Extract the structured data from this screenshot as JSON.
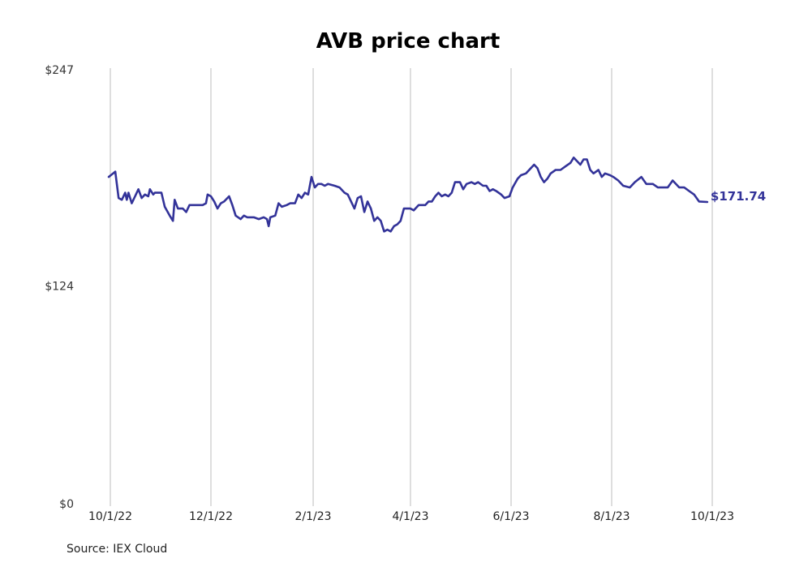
{
  "chart_data": {
    "type": "line",
    "title": "AVB price chart",
    "xlabel": "",
    "ylabel": "",
    "ylim": [
      0,
      247
    ],
    "y_ticks": [
      {
        "value": 0,
        "label": "$0"
      },
      {
        "value": 124,
        "label": "$124"
      },
      {
        "value": 247,
        "label": "$247"
      }
    ],
    "x_ticks": [
      "10/1/22",
      "12/1/22",
      "2/1/23",
      "4/1/23",
      "6/1/23",
      "8/1/23",
      "10/1/23"
    ],
    "xlim": [
      "2022-10-01",
      "2023-10-01"
    ],
    "grid": "vertical",
    "series_color": "#333399",
    "end_label": "$171.74",
    "series": [
      {
        "name": "",
        "points": [
          [
            "2022-09-30",
            186.0
          ],
          [
            "2022-10-04",
            189.0
          ],
          [
            "2022-10-06",
            174.0
          ],
          [
            "2022-10-08",
            173.0
          ],
          [
            "2022-10-10",
            177.0
          ],
          [
            "2022-10-11",
            173.0
          ],
          [
            "2022-10-12",
            177.0
          ],
          [
            "2022-10-14",
            171.0
          ],
          [
            "2022-10-16",
            175.0
          ],
          [
            "2022-10-18",
            179.0
          ],
          [
            "2022-10-20",
            174.0
          ],
          [
            "2022-10-22",
            176.0
          ],
          [
            "2022-10-24",
            175.0
          ],
          [
            "2022-10-25",
            179.0
          ],
          [
            "2022-10-27",
            176.0
          ],
          [
            "2022-10-28",
            177.0
          ],
          [
            "2022-11-01",
            177.0
          ],
          [
            "2022-11-03",
            169.0
          ],
          [
            "2022-11-06",
            164.0
          ],
          [
            "2022-11-08",
            161.0
          ],
          [
            "2022-11-09",
            173.0
          ],
          [
            "2022-11-11",
            168.0
          ],
          [
            "2022-11-14",
            168.0
          ],
          [
            "2022-11-16",
            166.0
          ],
          [
            "2022-11-18",
            170.0
          ],
          [
            "2022-11-22",
            170.0
          ],
          [
            "2022-11-26",
            170.0
          ],
          [
            "2022-11-28",
            171.0
          ],
          [
            "2022-11-29",
            176.0
          ],
          [
            "2022-12-01",
            175.0
          ],
          [
            "2022-12-03",
            172.0
          ],
          [
            "2022-12-05",
            168.0
          ],
          [
            "2022-12-07",
            171.0
          ],
          [
            "2022-12-09",
            172.0
          ],
          [
            "2022-12-12",
            175.0
          ],
          [
            "2022-12-14",
            170.0
          ],
          [
            "2022-12-16",
            164.0
          ],
          [
            "2022-12-19",
            162.0
          ],
          [
            "2022-12-21",
            164.0
          ],
          [
            "2022-12-23",
            163.0
          ],
          [
            "2022-12-27",
            163.0
          ],
          [
            "2022-12-30",
            162.0
          ],
          [
            "2023-01-02",
            163.0
          ],
          [
            "2023-01-04",
            162.0
          ],
          [
            "2023-01-05",
            158.0
          ],
          [
            "2023-01-06",
            163.0
          ],
          [
            "2023-01-09",
            164.0
          ],
          [
            "2023-01-11",
            171.0
          ],
          [
            "2023-01-13",
            169.0
          ],
          [
            "2023-01-16",
            170.0
          ],
          [
            "2023-01-18",
            171.0
          ],
          [
            "2023-01-21",
            171.0
          ],
          [
            "2023-01-23",
            176.0
          ],
          [
            "2023-01-25",
            174.0
          ],
          [
            "2023-01-27",
            177.0
          ],
          [
            "2023-01-29",
            176.0
          ],
          [
            "2023-01-31",
            186.0
          ],
          [
            "2023-02-02",
            180.0
          ],
          [
            "2023-02-04",
            182.0
          ],
          [
            "2023-02-06",
            182.0
          ],
          [
            "2023-02-08",
            181.0
          ],
          [
            "2023-02-10",
            182.0
          ],
          [
            "2023-02-14",
            181.0
          ],
          [
            "2023-02-17",
            180.0
          ],
          [
            "2023-02-20",
            177.0
          ],
          [
            "2023-02-22",
            176.0
          ],
          [
            "2023-02-24",
            172.0
          ],
          [
            "2023-02-26",
            168.0
          ],
          [
            "2023-02-28",
            174.0
          ],
          [
            "2023-03-02",
            175.0
          ],
          [
            "2023-03-04",
            166.0
          ],
          [
            "2023-03-06",
            172.0
          ],
          [
            "2023-03-08",
            168.0
          ],
          [
            "2023-03-10",
            161.0
          ],
          [
            "2023-03-12",
            163.0
          ],
          [
            "2023-03-14",
            161.0
          ],
          [
            "2023-03-16",
            155.0
          ],
          [
            "2023-03-18",
            156.0
          ],
          [
            "2023-03-20",
            155.0
          ],
          [
            "2023-03-22",
            158.0
          ],
          [
            "2023-03-24",
            159.0
          ],
          [
            "2023-03-26",
            161.0
          ],
          [
            "2023-03-28",
            168.0
          ],
          [
            "2023-04-01",
            168.0
          ],
          [
            "2023-04-03",
            167.0
          ],
          [
            "2023-04-06",
            170.0
          ],
          [
            "2023-04-10",
            170.0
          ],
          [
            "2023-04-12",
            172.0
          ],
          [
            "2023-04-14",
            172.0
          ],
          [
            "2023-04-16",
            175.0
          ],
          [
            "2023-04-18",
            177.0
          ],
          [
            "2023-04-20",
            175.0
          ],
          [
            "2023-04-22",
            176.0
          ],
          [
            "2023-04-24",
            175.0
          ],
          [
            "2023-04-26",
            177.0
          ],
          [
            "2023-04-28",
            183.0
          ],
          [
            "2023-05-01",
            183.0
          ],
          [
            "2023-05-03",
            179.0
          ],
          [
            "2023-05-05",
            182.0
          ],
          [
            "2023-05-08",
            183.0
          ],
          [
            "2023-05-10",
            182.0
          ],
          [
            "2023-05-12",
            183.0
          ],
          [
            "2023-05-15",
            181.0
          ],
          [
            "2023-05-17",
            181.0
          ],
          [
            "2023-05-19",
            178.0
          ],
          [
            "2023-05-21",
            179.0
          ],
          [
            "2023-05-23",
            178.0
          ],
          [
            "2023-05-26",
            176.0
          ],
          [
            "2023-05-28",
            174.0
          ],
          [
            "2023-05-31",
            175.0
          ],
          [
            "2023-06-02",
            180.0
          ],
          [
            "2023-06-05",
            185.0
          ],
          [
            "2023-06-07",
            187.0
          ],
          [
            "2023-06-10",
            188.0
          ],
          [
            "2023-06-13",
            191.0
          ],
          [
            "2023-06-15",
            193.0
          ],
          [
            "2023-06-17",
            191.0
          ],
          [
            "2023-06-19",
            186.0
          ],
          [
            "2023-06-21",
            183.0
          ],
          [
            "2023-06-23",
            185.0
          ],
          [
            "2023-06-25",
            188.0
          ],
          [
            "2023-06-28",
            190.0
          ],
          [
            "2023-07-01",
            190.0
          ],
          [
            "2023-07-04",
            192.0
          ],
          [
            "2023-07-07",
            194.0
          ],
          [
            "2023-07-09",
            197.0
          ],
          [
            "2023-07-11",
            195.0
          ],
          [
            "2023-07-13",
            193.0
          ],
          [
            "2023-07-15",
            196.0
          ],
          [
            "2023-07-17",
            196.0
          ],
          [
            "2023-07-19",
            190.0
          ],
          [
            "2023-07-21",
            188.0
          ],
          [
            "2023-07-24",
            190.0
          ],
          [
            "2023-07-26",
            186.0
          ],
          [
            "2023-07-28",
            188.0
          ],
          [
            "2023-07-31",
            187.0
          ],
          [
            "2023-08-02",
            186.0
          ],
          [
            "2023-08-05",
            184.0
          ],
          [
            "2023-08-08",
            181.0
          ],
          [
            "2023-08-12",
            180.0
          ],
          [
            "2023-08-15",
            183.0
          ],
          [
            "2023-08-19",
            186.0
          ],
          [
            "2023-08-22",
            182.0
          ],
          [
            "2023-08-26",
            182.0
          ],
          [
            "2023-08-29",
            180.0
          ],
          [
            "2023-09-01",
            180.0
          ],
          [
            "2023-09-04",
            180.0
          ],
          [
            "2023-09-07",
            184.0
          ],
          [
            "2023-09-11",
            180.0
          ],
          [
            "2023-09-14",
            180.0
          ],
          [
            "2023-09-17",
            178.0
          ],
          [
            "2023-09-20",
            176.0
          ],
          [
            "2023-09-23",
            172.0
          ],
          [
            "2023-09-28",
            171.74
          ]
        ]
      }
    ]
  },
  "source": "Source: IEX Cloud"
}
